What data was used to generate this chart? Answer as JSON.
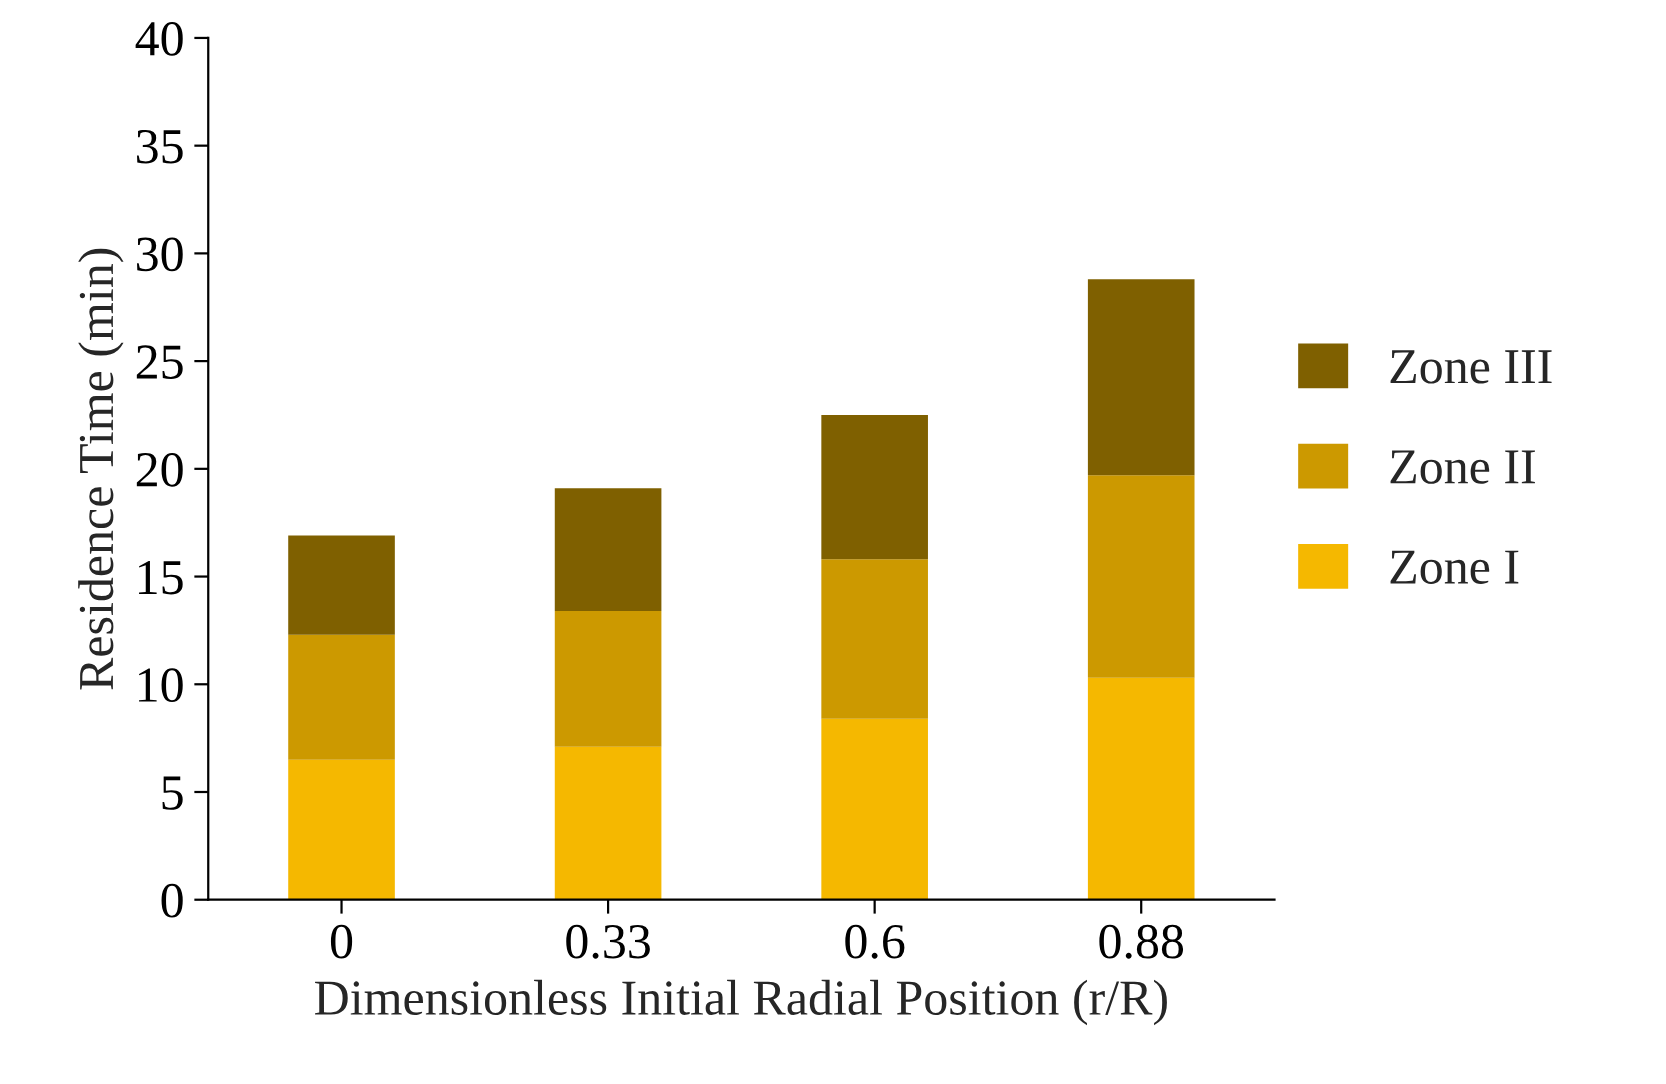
{
  "chart_data": {
    "type": "bar",
    "stacked": true,
    "xlabel": "Dimensionless Initial Radial Position (r/R)",
    "ylabel": "Residence Time (min)",
    "categories": [
      "0",
      "0.33",
      "0.6",
      "0.88"
    ],
    "series": [
      {
        "name": "Zone I",
        "color": "#f5b800",
        "values": [
          6.5,
          7.1,
          8.4,
          10.3
        ]
      },
      {
        "name": "Zone II",
        "color": "#cc9900",
        "values": [
          5.8,
          6.3,
          7.4,
          9.4
        ]
      },
      {
        "name": "Zone III",
        "color": "#7f6000",
        "values": [
          4.6,
          5.7,
          6.7,
          9.1
        ]
      }
    ],
    "ylim": [
      0,
      40
    ],
    "yticks": [
      0,
      5,
      10,
      15,
      20,
      25,
      30,
      35,
      40
    ],
    "grid": false,
    "legend": "right"
  }
}
